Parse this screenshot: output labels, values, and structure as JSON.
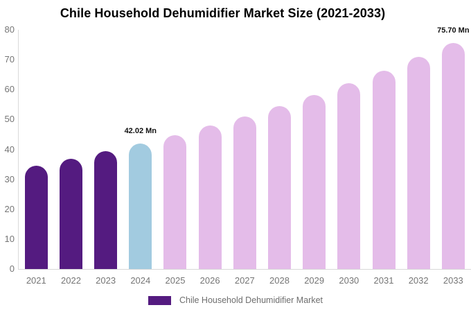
{
  "title": "Chile Household Dehumidifier Market Size (2021-2033)",
  "chart_data": {
    "type": "bar",
    "title": "Chile Household Dehumidifier Market Size (2021-2033)",
    "xlabel": "",
    "ylabel": "",
    "unit": "Mn",
    "ylim": [
      0,
      80
    ],
    "yticks": [
      0,
      10,
      20,
      30,
      40,
      50,
      60,
      70,
      80
    ],
    "grid": false,
    "legend_position": "bottom-center",
    "categories": [
      "2021",
      "2022",
      "2023",
      "2024",
      "2025",
      "2026",
      "2027",
      "2028",
      "2029",
      "2030",
      "2031",
      "2032",
      "2033"
    ],
    "values": [
      34.54,
      36.87,
      39.36,
      42.02,
      44.86,
      47.89,
      51.13,
      54.58,
      58.27,
      62.21,
      66.42,
      70.9,
      75.7
    ],
    "bar_roles": [
      "historical",
      "historical",
      "historical",
      "base_year",
      "forecast",
      "forecast",
      "forecast",
      "forecast",
      "forecast",
      "forecast",
      "forecast",
      "forecast",
      "forecast"
    ],
    "visible_value_labels": [
      {
        "category": "2024",
        "text": "42.02 Mn"
      },
      {
        "category": "2033",
        "text": "75.70 Mn"
      }
    ],
    "legend": {
      "label": "Chile Household Dehumidifier Market",
      "marker_color": "#541b80"
    },
    "colors": {
      "historical": "#541b80",
      "base_year": "#a2cbe0",
      "forecast": "#e4bce9",
      "axis_line": "#d9d9d9",
      "tick_text": "#757575",
      "value_label_text": "#111111"
    }
  }
}
